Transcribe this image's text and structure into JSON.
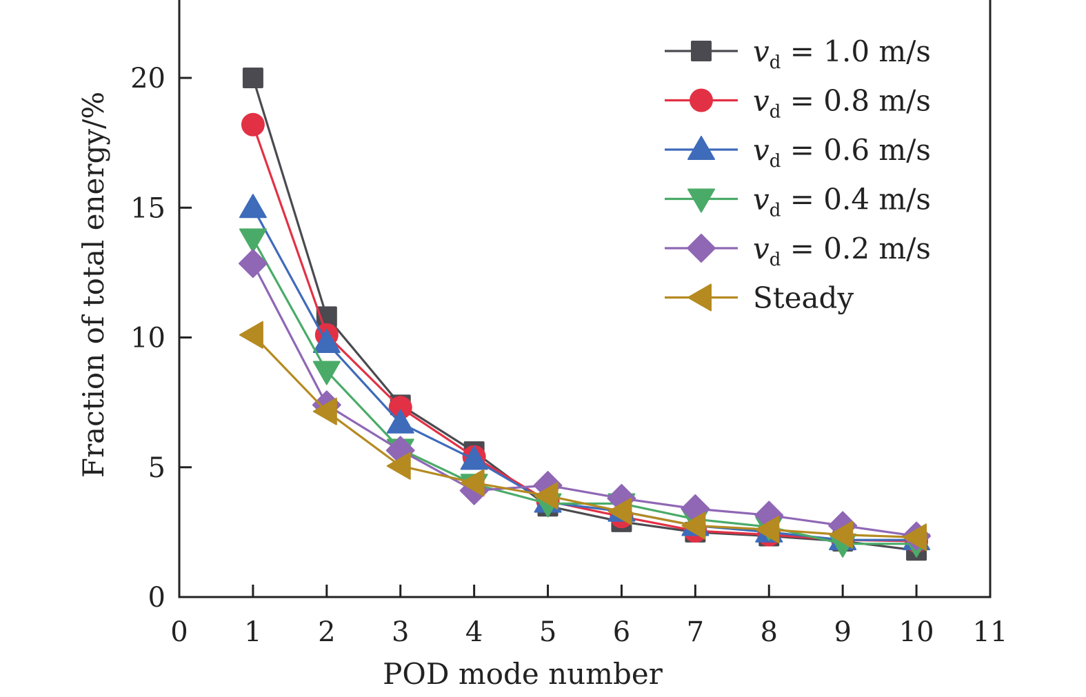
{
  "chart_data": {
    "type": "line",
    "title": "",
    "xlabel": "POD mode number",
    "ylabel": "Fraction of total energy/%",
    "xlim": [
      0,
      11
    ],
    "ylim": [
      0,
      23
    ],
    "xticks": [
      0,
      1,
      2,
      3,
      4,
      5,
      6,
      7,
      8,
      9,
      10,
      11
    ],
    "yticks": [
      0,
      5,
      10,
      15,
      20
    ],
    "grid": false,
    "legend_position": "top-right",
    "x": [
      1,
      2,
      3,
      4,
      5,
      6,
      7,
      8,
      9,
      10
    ],
    "series": [
      {
        "name": "v_d = 1.0 m/s",
        "legend_var": "v",
        "legend_sub": "d",
        "legend_rest": " = 1.0 m/s",
        "color": "#4a4a50",
        "marker": "square",
        "values": [
          20.0,
          10.8,
          7.4,
          5.6,
          3.5,
          2.9,
          2.5,
          2.35,
          2.15,
          1.8
        ]
      },
      {
        "name": "v_d = 0.8 m/s",
        "legend_var": "v",
        "legend_sub": "d",
        "legend_rest": " = 0.8 m/s",
        "color": "#e23145",
        "marker": "circle",
        "values": [
          18.2,
          10.1,
          7.3,
          5.4,
          3.7,
          3.1,
          2.55,
          2.4,
          2.2,
          2.15
        ]
      },
      {
        "name": "v_d = 0.6 m/s",
        "legend_var": "v",
        "legend_sub": "d",
        "legend_rest": " = 0.6 m/s",
        "color": "#3e6bba",
        "marker": "triangle-up",
        "values": [
          15.0,
          9.8,
          6.7,
          5.3,
          3.65,
          3.3,
          2.75,
          2.5,
          2.2,
          2.2
        ]
      },
      {
        "name": "v_d = 0.4 m/s",
        "legend_var": "v",
        "legend_sub": "d",
        "legend_rest": " = 0.4 m/s",
        "color": "#4aab68",
        "marker": "triangle-down",
        "values": [
          13.8,
          8.7,
          5.7,
          4.35,
          3.6,
          3.6,
          3.0,
          2.7,
          2.05,
          2.05
        ]
      },
      {
        "name": "v_d = 0.2 m/s",
        "legend_var": "v",
        "legend_sub": "d",
        "legend_rest": " = 0.2 m/s",
        "color": "#8f67b5",
        "marker": "diamond",
        "values": [
          12.85,
          7.4,
          5.65,
          4.1,
          4.3,
          3.8,
          3.4,
          3.15,
          2.75,
          2.35
        ]
      },
      {
        "name": "Steady",
        "legend_var": "",
        "legend_sub": "",
        "legend_rest": "Steady",
        "color": "#b58a20",
        "marker": "triangle-left",
        "values": [
          10.1,
          7.15,
          5.05,
          4.4,
          3.9,
          3.3,
          2.75,
          2.6,
          2.4,
          2.3
        ]
      }
    ]
  }
}
